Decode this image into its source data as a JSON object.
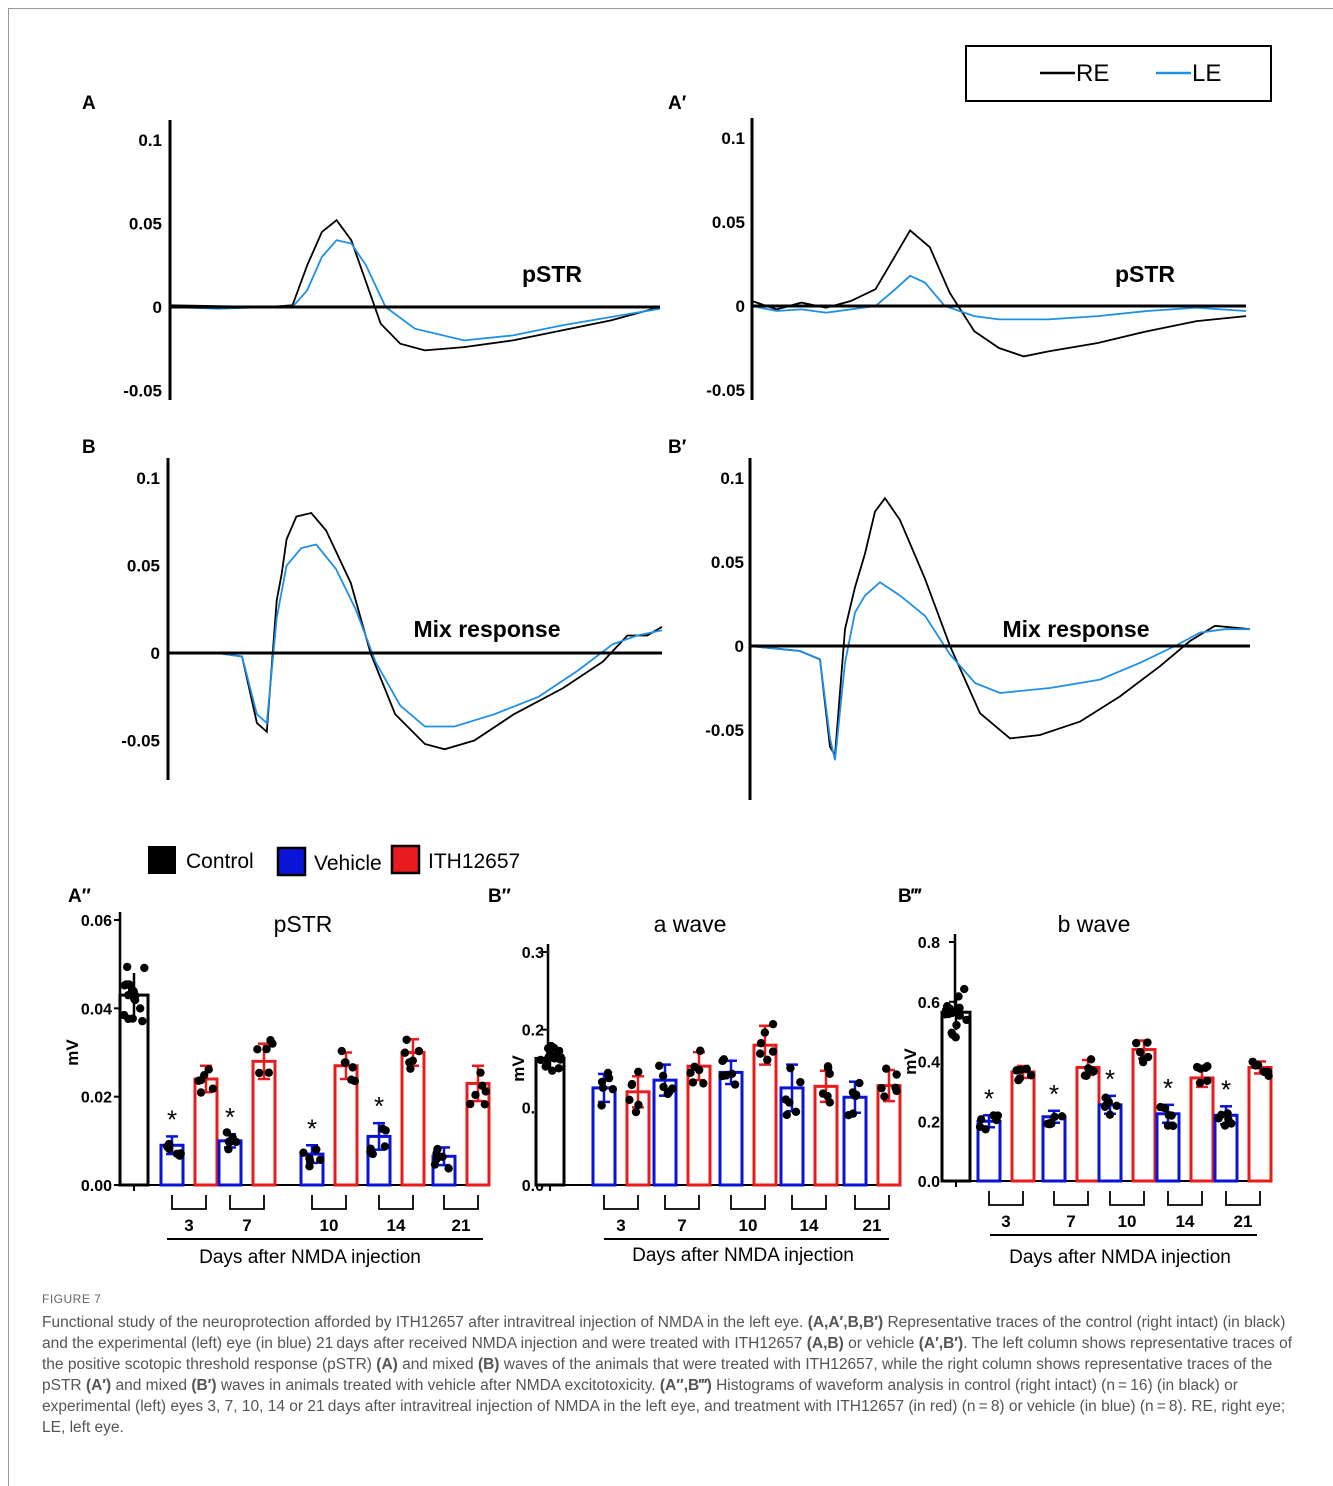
{
  "figure_label": "FIGURE 7",
  "caption": {
    "s1": "Functional study of the neuroprotection afforded by ITH12657 after intravitreal injection of NMDA in the left eye.",
    "b1": "(A,A′,B,B′)",
    "s2": "Representative traces of the control (right intact) (in black) and the experimental (left) eye (in blue) 21 days after received NMDA injection and were treated with ITH12657",
    "b2": "(A,B)",
    "s3": "or vehicle",
    "b3": "(A′,B′)",
    "s4": ". The left column shows representative traces of the positive scotopic threshold response (pSTR)",
    "b4": "(A)",
    "s5": "and mixed",
    "b5": "(B)",
    "s6": "waves of the animals that were treated with ITH12657, while the right column shows representative traces of the pSTR",
    "b6": "(A′)",
    "s7": "and mixed",
    "b7": "(B′)",
    "s8": "waves in animals treated with vehicle after NMDA excitotoxicity.",
    "b8": "(A″,B‴)",
    "s9": "Histograms of waveform analysis in control (right intact) (n = 16) (in black) or experimental (left) eyes 3, 7, 10, 14 or 21 days after intravitreal injection of NMDA in the left eye, and treatment with ITH12657 (in red) (n = 8) or vehicle (in blue) (n = 8). RE, right eye; LE, left eye."
  },
  "trace_legend": {
    "re": "RE",
    "le": "LE"
  },
  "bar_legend": {
    "control": "Control",
    "vehicle": "Vehicle",
    "ith": "ITH12657"
  },
  "colors": {
    "re": "#000000",
    "le": "#1e90e6",
    "control": "#000000",
    "vehicle": "#0a14d8",
    "ith": "#e81c1c",
    "dot": "#000000"
  },
  "chart_data": [
    {
      "id": "A",
      "panel_label": "A",
      "type": "line",
      "annotation": "pSTR",
      "yticks": [
        "0.1",
        "0.05",
        "0",
        "-0.05"
      ],
      "ylim": [
        -0.05,
        0.1
      ],
      "series": [
        {
          "name": "RE",
          "points": [
            [
              0,
              0.001
            ],
            [
              0.1,
              0.0005
            ],
            [
              0.2,
              0
            ],
            [
              0.25,
              0.001
            ],
            [
              0.28,
              0.025
            ],
            [
              0.31,
              0.045
            ],
            [
              0.34,
              0.052
            ],
            [
              0.37,
              0.04
            ],
            [
              0.4,
              0.015
            ],
            [
              0.43,
              -0.01
            ],
            [
              0.47,
              -0.022
            ],
            [
              0.52,
              -0.026
            ],
            [
              0.6,
              -0.024
            ],
            [
              0.7,
              -0.02
            ],
            [
              0.8,
              -0.014
            ],
            [
              0.9,
              -0.008
            ],
            [
              1,
              0
            ]
          ]
        },
        {
          "name": "LE",
          "points": [
            [
              0,
              0
            ],
            [
              0.1,
              -0.001
            ],
            [
              0.2,
              0
            ],
            [
              0.25,
              0
            ],
            [
              0.28,
              0.01
            ],
            [
              0.31,
              0.03
            ],
            [
              0.34,
              0.04
            ],
            [
              0.37,
              0.038
            ],
            [
              0.4,
              0.025
            ],
            [
              0.44,
              0
            ],
            [
              0.5,
              -0.013
            ],
            [
              0.6,
              -0.02
            ],
            [
              0.7,
              -0.017
            ],
            [
              0.8,
              -0.011
            ],
            [
              0.9,
              -0.006
            ],
            [
              1,
              -0.001
            ]
          ]
        }
      ]
    },
    {
      "id": "A1",
      "panel_label": "A′",
      "type": "line",
      "annotation": "pSTR",
      "yticks": [
        "0.1",
        "0.05",
        "0",
        "-0.05"
      ],
      "ylim": [
        -0.05,
        0.1
      ],
      "series": [
        {
          "name": "RE",
          "points": [
            [
              0,
              0.003
            ],
            [
              0.05,
              -0.002
            ],
            [
              0.1,
              0.002
            ],
            [
              0.15,
              -0.001
            ],
            [
              0.2,
              0.003
            ],
            [
              0.25,
              0.01
            ],
            [
              0.29,
              0.03
            ],
            [
              0.32,
              0.045
            ],
            [
              0.36,
              0.035
            ],
            [
              0.4,
              0.008
            ],
            [
              0.45,
              -0.015
            ],
            [
              0.5,
              -0.025
            ],
            [
              0.55,
              -0.03
            ],
            [
              0.6,
              -0.027
            ],
            [
              0.7,
              -0.022
            ],
            [
              0.8,
              -0.015
            ],
            [
              0.9,
              -0.009
            ],
            [
              1,
              -0.006
            ]
          ]
        },
        {
          "name": "LE",
          "points": [
            [
              0,
              0
            ],
            [
              0.05,
              -0.003
            ],
            [
              0.1,
              -0.002
            ],
            [
              0.15,
              -0.004
            ],
            [
              0.2,
              -0.002
            ],
            [
              0.25,
              0
            ],
            [
              0.29,
              0.01
            ],
            [
              0.32,
              0.018
            ],
            [
              0.35,
              0.014
            ],
            [
              0.39,
              0
            ],
            [
              0.45,
              -0.006
            ],
            [
              0.5,
              -0.008
            ],
            [
              0.6,
              -0.008
            ],
            [
              0.7,
              -0.006
            ],
            [
              0.8,
              -0.003
            ],
            [
              0.9,
              -0.001
            ],
            [
              1,
              -0.003
            ]
          ]
        }
      ]
    },
    {
      "id": "B",
      "panel_label": "B",
      "type": "line",
      "annotation": "Mix response",
      "yticks": [
        "0.1",
        "0.05",
        "0",
        "-0.05"
      ],
      "ylim": [
        -0.05,
        0.1
      ],
      "series": [
        {
          "name": "RE",
          "points": [
            [
              0,
              0
            ],
            [
              0.1,
              0
            ],
            [
              0.15,
              -0.002
            ],
            [
              0.18,
              -0.04
            ],
            [
              0.2,
              -0.045
            ],
            [
              0.22,
              0.03
            ],
            [
              0.23,
              0.045
            ],
            [
              0.24,
              0.065
            ],
            [
              0.26,
              0.078
            ],
            [
              0.29,
              0.08
            ],
            [
              0.32,
              0.07
            ],
            [
              0.37,
              0.04
            ],
            [
              0.41,
              0
            ],
            [
              0.46,
              -0.035
            ],
            [
              0.52,
              -0.052
            ],
            [
              0.56,
              -0.055
            ],
            [
              0.62,
              -0.05
            ],
            [
              0.7,
              -0.035
            ],
            [
              0.8,
              -0.02
            ],
            [
              0.88,
              -0.005
            ],
            [
              0.93,
              0.01
            ],
            [
              0.97,
              0.01
            ],
            [
              1,
              0.015
            ]
          ]
        },
        {
          "name": "LE",
          "points": [
            [
              0,
              0
            ],
            [
              0.1,
              0
            ],
            [
              0.15,
              -0.002
            ],
            [
              0.18,
              -0.035
            ],
            [
              0.2,
              -0.04
            ],
            [
              0.22,
              0.02
            ],
            [
              0.24,
              0.05
            ],
            [
              0.27,
              0.06
            ],
            [
              0.3,
              0.062
            ],
            [
              0.34,
              0.048
            ],
            [
              0.38,
              0.025
            ],
            [
              0.42,
              -0.005
            ],
            [
              0.47,
              -0.03
            ],
            [
              0.52,
              -0.042
            ],
            [
              0.58,
              -0.042
            ],
            [
              0.66,
              -0.035
            ],
            [
              0.75,
              -0.025
            ],
            [
              0.83,
              -0.01
            ],
            [
              0.9,
              0.005
            ],
            [
              0.95,
              0.01
            ],
            [
              1,
              0.013
            ]
          ]
        }
      ]
    },
    {
      "id": "B1",
      "panel_label": "B′",
      "type": "line",
      "annotation": "Mix response",
      "yticks": [
        "0.1",
        "0.05",
        "0",
        "-0.05"
      ],
      "ylim": [
        -0.05,
        0.1
      ],
      "series": [
        {
          "name": "RE",
          "points": [
            [
              0,
              0
            ],
            [
              0.1,
              -0.003
            ],
            [
              0.14,
              -0.008
            ],
            [
              0.16,
              -0.06
            ],
            [
              0.17,
              -0.065
            ],
            [
              0.19,
              0.01
            ],
            [
              0.21,
              0.035
            ],
            [
              0.23,
              0.055
            ],
            [
              0.25,
              0.08
            ],
            [
              0.27,
              0.088
            ],
            [
              0.3,
              0.075
            ],
            [
              0.35,
              0.04
            ],
            [
              0.4,
              0
            ],
            [
              0.46,
              -0.04
            ],
            [
              0.52,
              -0.055
            ],
            [
              0.58,
              -0.053
            ],
            [
              0.66,
              -0.045
            ],
            [
              0.74,
              -0.03
            ],
            [
              0.82,
              -0.012
            ],
            [
              0.88,
              0.003
            ],
            [
              0.93,
              0.012
            ],
            [
              1,
              0.01
            ]
          ]
        },
        {
          "name": "LE",
          "points": [
            [
              0,
              0
            ],
            [
              0.1,
              -0.003
            ],
            [
              0.14,
              -0.008
            ],
            [
              0.16,
              -0.055
            ],
            [
              0.17,
              -0.068
            ],
            [
              0.19,
              -0.01
            ],
            [
              0.21,
              0.02
            ],
            [
              0.23,
              0.03
            ],
            [
              0.26,
              0.038
            ],
            [
              0.3,
              0.03
            ],
            [
              0.35,
              0.018
            ],
            [
              0.4,
              -0.005
            ],
            [
              0.45,
              -0.022
            ],
            [
              0.5,
              -0.028
            ],
            [
              0.6,
              -0.025
            ],
            [
              0.7,
              -0.02
            ],
            [
              0.78,
              -0.01
            ],
            [
              0.85,
              0
            ],
            [
              0.9,
              0.008
            ],
            [
              0.95,
              0.01
            ],
            [
              1,
              0.01
            ]
          ]
        }
      ]
    },
    {
      "id": "A2",
      "panel_label": "A″",
      "type": "bar",
      "title": "pSTR",
      "ylabel": "mV",
      "yticks": [
        "0.06",
        "0.04",
        "0.02",
        "0.00"
      ],
      "ylim": [
        0,
        0.06
      ],
      "groups": [
        "3",
        "7",
        "10",
        "14",
        "21"
      ],
      "xlabel": "Days after  NMDA injection",
      "control": {
        "mean": 0.043,
        "sd": 0.005
      },
      "vehicle": {
        "means": [
          0.009,
          0.01,
          0.007,
          0.011,
          0.0065
        ],
        "sds": [
          0.002,
          0.0015,
          0.002,
          0.003,
          0.002
        ]
      },
      "ith": {
        "means": [
          0.024,
          0.028,
          0.027,
          0.03,
          0.023
        ],
        "sds": [
          0.003,
          0.004,
          0.003,
          0.003,
          0.004
        ]
      },
      "significant_vehicle": [
        true,
        true,
        true,
        true,
        false
      ]
    },
    {
      "id": "B2",
      "panel_label": "B″",
      "type": "bar",
      "title": "a wave",
      "ylabel": "mV",
      "yticks": [
        "0.3",
        "0.2",
        "0.1",
        "0.0"
      ],
      "ylim": [
        0,
        0.3
      ],
      "groups": [
        "3",
        "7",
        "10",
        "14",
        "21"
      ],
      "xlabel": "Days after  NMDA injection",
      "control": {
        "mean": 0.163,
        "sd": 0.012
      },
      "vehicle": {
        "means": [
          0.125,
          0.135,
          0.145,
          0.125,
          0.113
        ],
        "sds": [
          0.018,
          0.02,
          0.015,
          0.03,
          0.02
        ]
      },
      "ith": {
        "means": [
          0.12,
          0.153,
          0.18,
          0.127,
          0.128
        ],
        "sds": [
          0.02,
          0.018,
          0.025,
          0.02,
          0.02
        ]
      },
      "significant_vehicle": [
        false,
        false,
        false,
        false,
        false
      ]
    },
    {
      "id": "B3",
      "panel_label": "B‴",
      "type": "bar",
      "title": "b wave",
      "ylabel": "mV",
      "yticks": [
        "0.8",
        "0.6",
        "0.4",
        "0.2",
        "0.0"
      ],
      "ylim": [
        0,
        0.8
      ],
      "groups": [
        "3",
        "7",
        "10",
        "14",
        "21"
      ],
      "xlabel": "Days after  NMDA injection",
      "control": {
        "mean": 0.565,
        "sd": 0.06
      },
      "vehicle": {
        "means": [
          0.2,
          0.215,
          0.255,
          0.225,
          0.22
        ],
        "sds": [
          0.02,
          0.02,
          0.03,
          0.03,
          0.03
        ]
      },
      "ith": {
        "means": [
          0.365,
          0.38,
          0.44,
          0.345,
          0.38
        ],
        "sds": [
          0.02,
          0.025,
          0.03,
          0.03,
          0.02
        ]
      },
      "significant_vehicle": [
        true,
        true,
        true,
        true,
        true
      ]
    }
  ]
}
